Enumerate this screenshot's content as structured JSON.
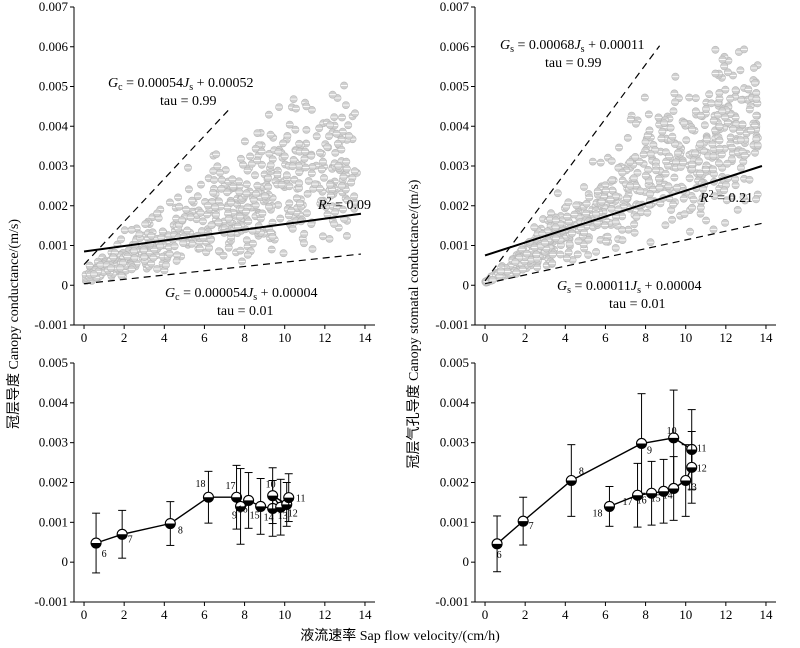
{
  "figure": {
    "xlabel": "液流速率 Sap flow velocity/(cm/h)",
    "ylabel_left": "冠层导度 Canopy conductance/(m/s)",
    "ylabel_right": "冠层气孔导度 Canopy stomatal conductance/(m/s)"
  },
  "chart_data": [
    {
      "id": "top-left",
      "type": "scatter",
      "xlim": [
        -0.5,
        14.5
      ],
      "ylim": [
        -0.001,
        0.007
      ],
      "xticks": [
        "0",
        "2",
        "4",
        "6",
        "8",
        "10",
        "12",
        "14"
      ],
      "yticks": [
        "-0.001",
        "0",
        "0.001",
        "0.002",
        "0.003",
        "0.004",
        "0.005",
        "0.006",
        "0.007"
      ],
      "upper_line": {
        "slope": 0.00054,
        "intercept": 0.00052,
        "x_range": [
          0,
          7.3
        ]
      },
      "lower_line": {
        "slope": 5.4e-05,
        "intercept": 4e-05,
        "x_range": [
          0,
          13.8
        ]
      },
      "fit_line": {
        "points": [
          [
            0,
            0.00085
          ],
          [
            13.8,
            0.0018
          ]
        ]
      },
      "eq_upper_1": "Gc = 0.00054Js + 0.00052",
      "eq_upper_2": "tau = 0.99",
      "eq_lower_1": "Gc = 0.000054Js + 0.00004",
      "eq_lower_2": "tau = 0.01",
      "r2": "R2 = 0.09",
      "scatter_seed": 11,
      "scatter_count": 650
    },
    {
      "id": "top-right",
      "type": "scatter",
      "xlim": [
        -0.5,
        14.5
      ],
      "ylim": [
        -0.001,
        0.007
      ],
      "xticks": [
        "0",
        "2",
        "4",
        "6",
        "8",
        "10",
        "12",
        "14"
      ],
      "yticks": [
        "-0.001",
        "0",
        "0.001",
        "0.002",
        "0.003",
        "0.004",
        "0.005",
        "0.006",
        "0.007"
      ],
      "upper_line": {
        "slope": 0.00068,
        "intercept": 0.00011,
        "x_range": [
          0,
          8.7
        ]
      },
      "lower_line": {
        "slope": 0.00011,
        "intercept": 4e-05,
        "x_range": [
          0,
          13.8
        ]
      },
      "fit_line": {
        "points": [
          [
            0,
            0.00075
          ],
          [
            13.8,
            0.003
          ]
        ]
      },
      "eq_upper_1": "Gs = 0.00068Js + 0.00011",
      "eq_upper_2": "tau = 0.99",
      "eq_lower_1": "Gs = 0.00011Js + 0.00004",
      "eq_lower_2": "tau = 0.01",
      "r2": "R2 = 0.21",
      "scatter_seed": 29,
      "scatter_count": 750
    },
    {
      "id": "bottom-left",
      "type": "line",
      "xlim": [
        -0.5,
        14.5
      ],
      "ylim": [
        -0.001,
        0.005
      ],
      "xticks": [
        "0",
        "2",
        "4",
        "6",
        "8",
        "10",
        "12",
        "14"
      ],
      "yticks": [
        "-0.001",
        "0",
        "0.001",
        "0.002",
        "0.003",
        "0.004",
        "0.005"
      ],
      "points": [
        {
          "label": "6",
          "x": 0.6,
          "y": 0.00048,
          "err": 0.00075
        },
        {
          "label": "7",
          "x": 1.9,
          "y": 0.0007,
          "err": 0.0006
        },
        {
          "label": "8",
          "x": 4.3,
          "y": 0.00097,
          "err": 0.00055
        },
        {
          "label": "18",
          "x": 6.2,
          "y": 0.00163,
          "err": 0.00065
        },
        {
          "label": "17",
          "x": 7.6,
          "y": 0.00163,
          "err": 0.0008
        },
        {
          "label": "9",
          "x": 7.8,
          "y": 0.0014,
          "err": 0.00095
        },
        {
          "label": "16",
          "x": 8.2,
          "y": 0.00155,
          "err": 0.0007
        },
        {
          "label": "15",
          "x": 8.8,
          "y": 0.0014,
          "err": 0.0007
        },
        {
          "label": "14",
          "x": 9.4,
          "y": 0.00135,
          "err": 0.0007
        },
        {
          "label": "13",
          "x": 9.8,
          "y": 0.00138,
          "err": 0.0007
        },
        {
          "label": "10",
          "x": 9.4,
          "y": 0.00167,
          "err": 0.0007
        },
        {
          "label": "12",
          "x": 10.1,
          "y": 0.00145,
          "err": 0.00055
        },
        {
          "label": "11",
          "x": 10.2,
          "y": 0.00162,
          "err": 0.0006
        }
      ]
    },
    {
      "id": "bottom-right",
      "type": "line",
      "xlim": [
        -0.5,
        14.5
      ],
      "ylim": [
        -0.001,
        0.005
      ],
      "xticks": [
        "0",
        "2",
        "4",
        "6",
        "8",
        "10",
        "12",
        "14"
      ],
      "yticks": [
        "-0.001",
        "0",
        "0.001",
        "0.002",
        "0.003",
        "0.004",
        "0.005"
      ],
      "points": [
        {
          "label": "6",
          "x": 0.6,
          "y": 0.00046,
          "err": 0.0007
        },
        {
          "label": "7",
          "x": 1.9,
          "y": 0.00103,
          "err": 0.0006
        },
        {
          "label": "8",
          "x": 4.3,
          "y": 0.00205,
          "err": 0.0009
        },
        {
          "label": "9",
          "x": 7.8,
          "y": 0.00298,
          "err": 0.00125
        },
        {
          "label": "10",
          "x": 9.4,
          "y": 0.00312,
          "err": 0.0012
        },
        {
          "label": "11",
          "x": 10.3,
          "y": 0.00283,
          "err": 0.001
        },
        {
          "label": "12",
          "x": 10.3,
          "y": 0.00238,
          "err": 0.0009
        },
        {
          "label": "13",
          "x": 10.0,
          "y": 0.00205,
          "err": 0.0009
        },
        {
          "label": "14",
          "x": 9.4,
          "y": 0.00185,
          "err": 0.0008
        },
        {
          "label": "15",
          "x": 8.9,
          "y": 0.00178,
          "err": 0.0008
        },
        {
          "label": "16",
          "x": 8.3,
          "y": 0.00173,
          "err": 0.0008
        },
        {
          "label": "17",
          "x": 7.6,
          "y": 0.00168,
          "err": 0.0008
        },
        {
          "label": "18",
          "x": 6.2,
          "y": 0.0014,
          "err": 0.0005
        }
      ]
    }
  ]
}
